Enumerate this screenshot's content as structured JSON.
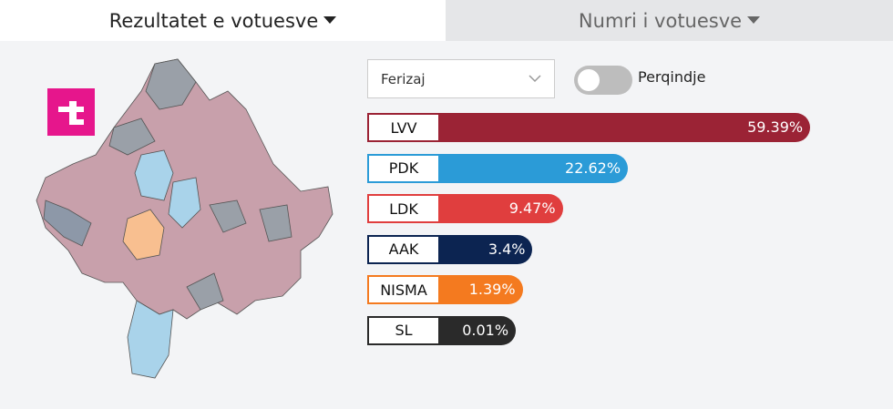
{
  "tabs": [
    "Rezultatet e votuesve",
    "Numri i votuesve"
  ],
  "controls": {
    "dropdown": "Ferizaj",
    "toggle_label": "Perqindje"
  },
  "chart_data": {
    "type": "bar",
    "orientation": "horizontal",
    "categories": [
      "LVV",
      "PDK",
      "LDK",
      "AAK",
      "NISMA",
      "SL"
    ],
    "values": [
      59.39,
      22.62,
      9.47,
      3.4,
      1.39,
      0.01
    ],
    "value_labels": [
      "59.39%",
      "22.62%",
      "9.47%",
      "3.4%",
      "1.39%",
      "0.01%"
    ],
    "colors": [
      "#9b2335",
      "#2b9bd7",
      "#e03e3e",
      "#0c2451",
      "#f47a1f",
      "#2a2a2a"
    ]
  }
}
